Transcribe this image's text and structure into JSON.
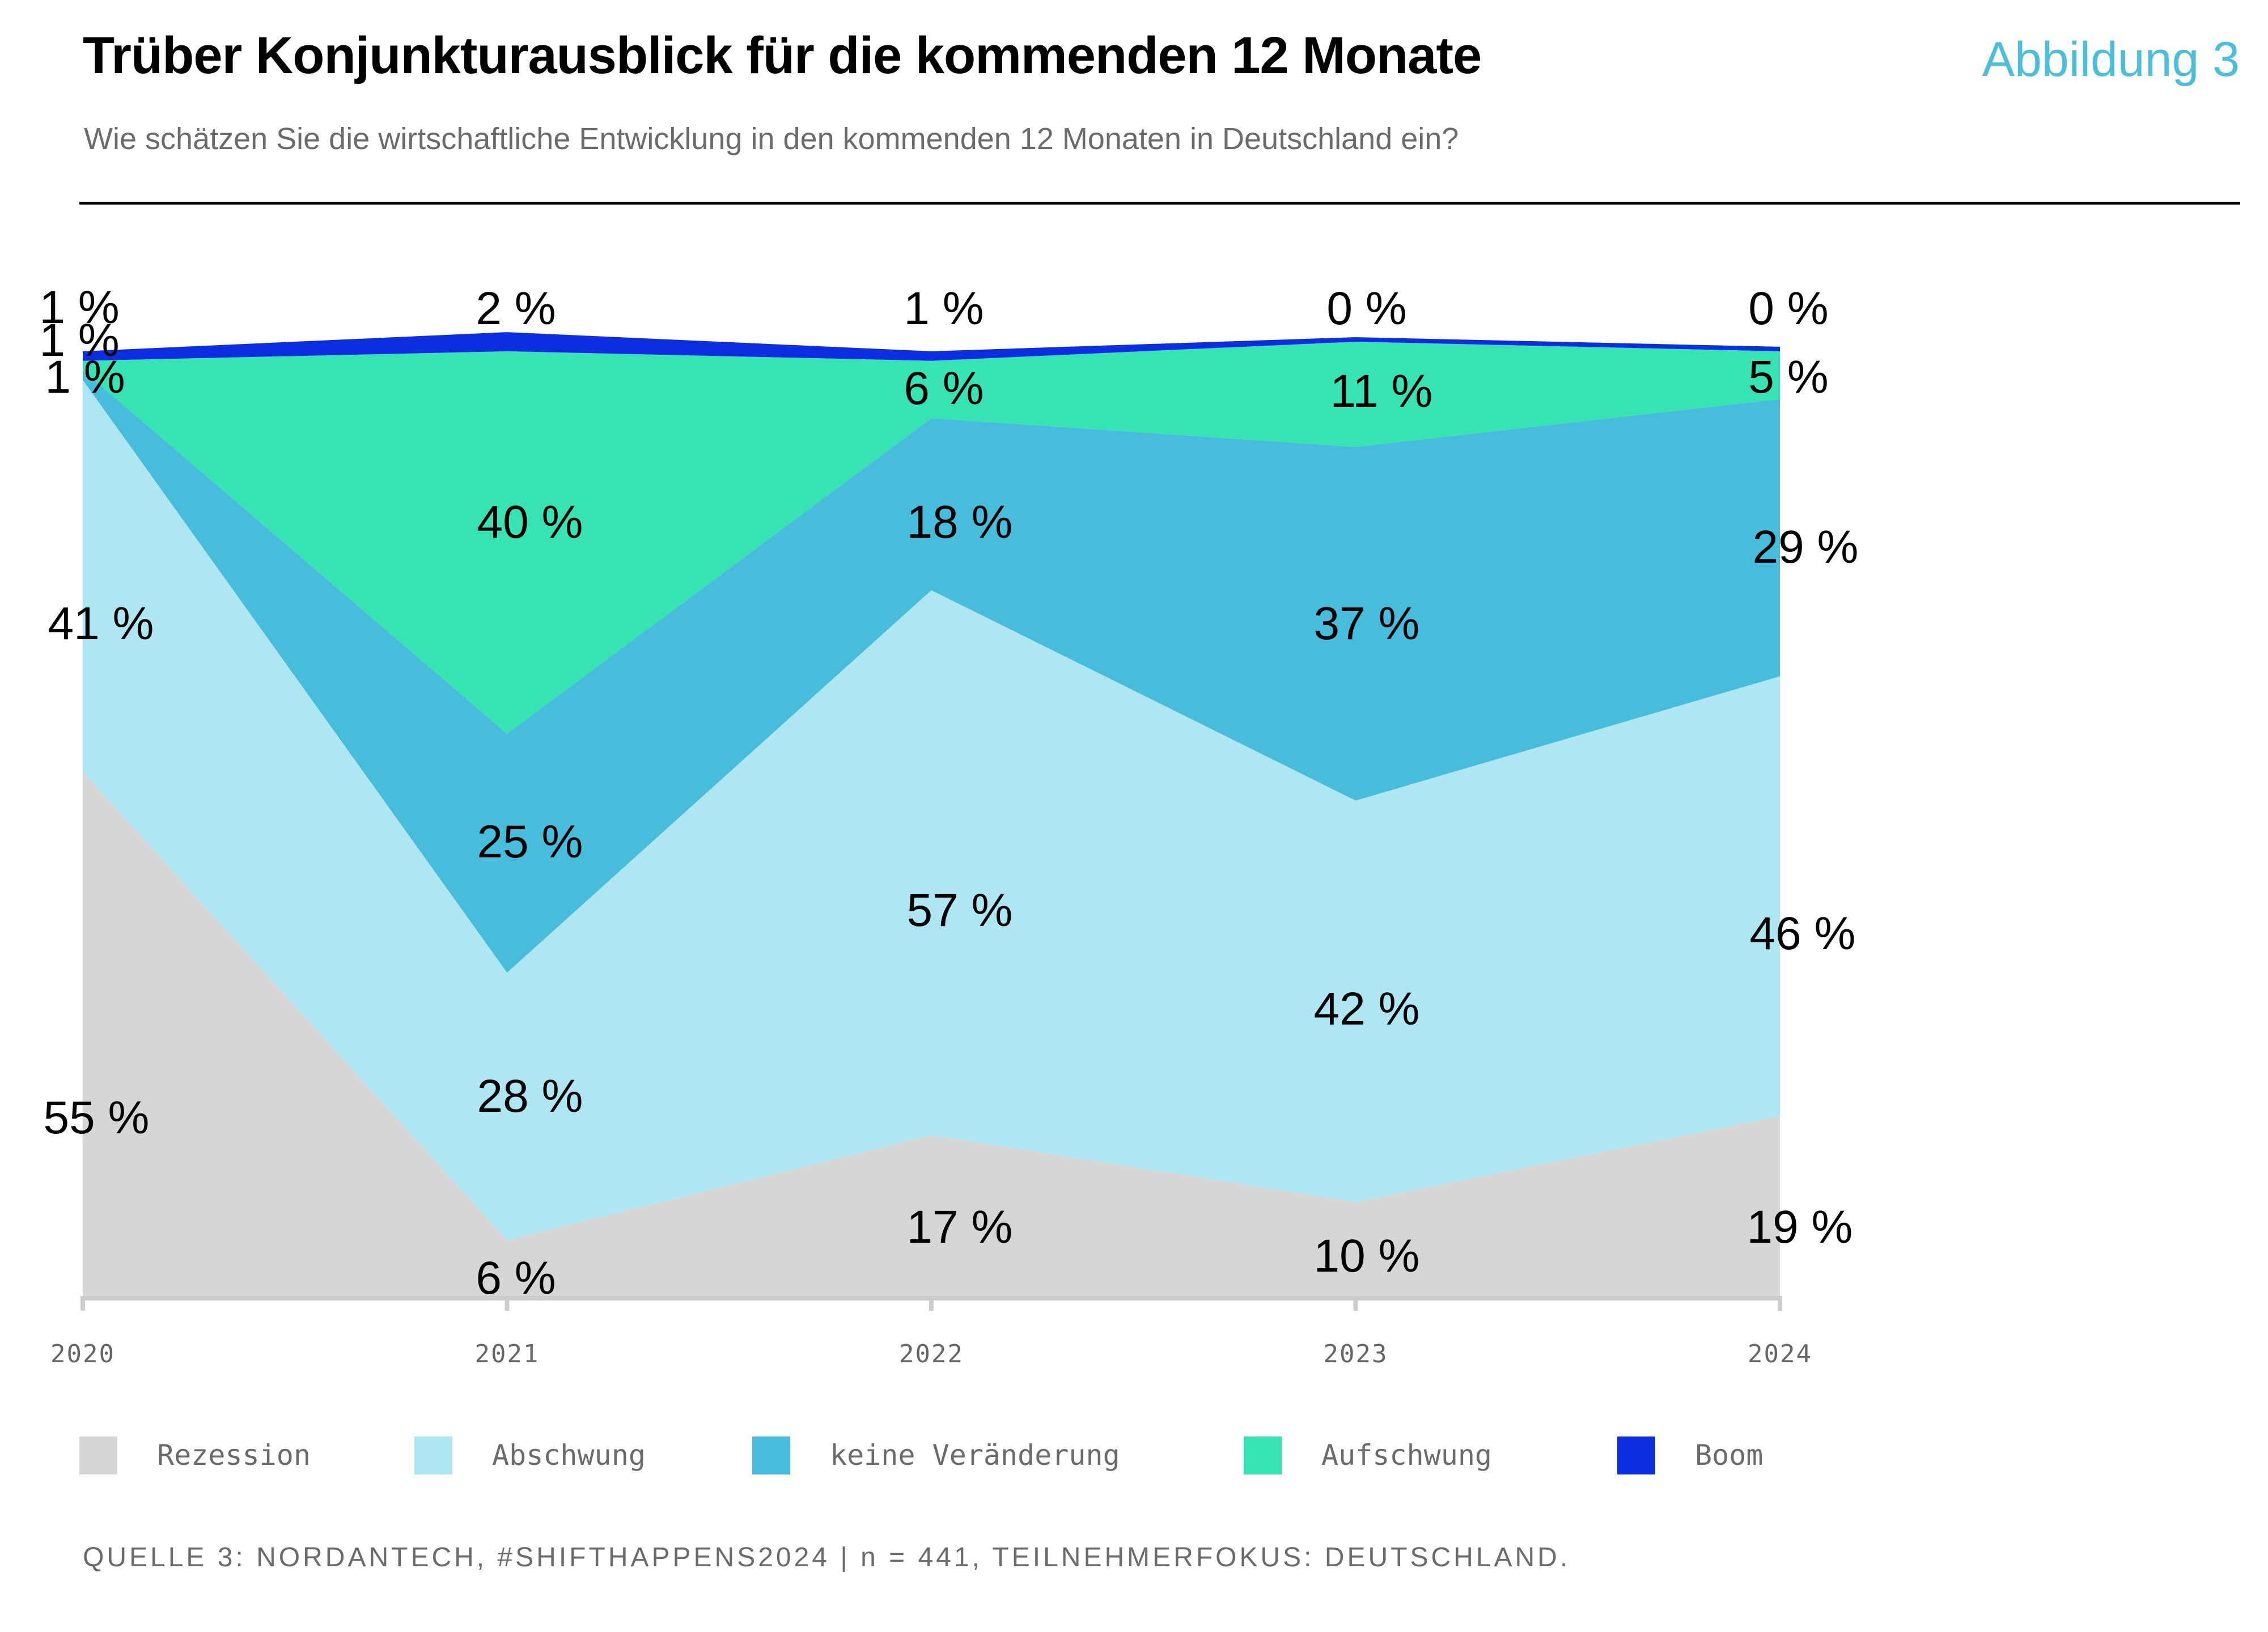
{
  "header": {
    "title": "Trüber Konjunkturausblick für die kommenden 12 Monate",
    "figure_label": "Abbildung 3",
    "subtitle": "Wie schätzen Sie die wirtschaftliche Entwicklung in den kommenden 12 Monaten in Deutschland ein?"
  },
  "colors": {
    "accent": "#4bbedc",
    "rezession": "#d6d6d6",
    "abschwung": "#aee7f1",
    "keine_veraenderung": "#47bcdb",
    "aufschwung": "#37e2b3",
    "boom": "#0c2ee0",
    "axis": "#cccccc"
  },
  "chart_data": {
    "type": "area",
    "stacked": true,
    "title": "Trüber Konjunkturausblick für die kommenden 12 Monate",
    "subtitle": "Wie schätzen Sie die wirtschaftliche Entwicklung in den kommenden 12 Monaten in Deutschland ein?",
    "xlabel": "",
    "ylabel": "",
    "categories": [
      "2020",
      "2021",
      "2022",
      "2023",
      "2024"
    ],
    "ylim": [
      0,
      101
    ],
    "grid": false,
    "legend_position": "bottom",
    "value_suffix": " %",
    "series": [
      {
        "name": "Rezession",
        "color": "#d6d6d6",
        "values": [
          55,
          6,
          17,
          10,
          19
        ]
      },
      {
        "name": "Abschwung",
        "color": "#aee7f1",
        "values": [
          41,
          28,
          57,
          42,
          46
        ]
      },
      {
        "name": "keine Veränderung",
        "color": "#47bcdb",
        "values": [
          1,
          25,
          18,
          37,
          29
        ]
      },
      {
        "name": "Aufschwung",
        "color": "#37e2b3",
        "values": [
          1,
          40,
          6,
          11,
          5
        ]
      },
      {
        "name": "Boom",
        "color": "#0c2ee0",
        "values": [
          1,
          2,
          1,
          0,
          0
        ]
      }
    ]
  },
  "legend": {
    "items": [
      {
        "label": "Rezession",
        "color": "#d6d6d6"
      },
      {
        "label": "Abschwung",
        "color": "#aee7f1"
      },
      {
        "label": "keine Veränderung",
        "color": "#47bcdb"
      },
      {
        "label": "Aufschwung",
        "color": "#37e2b3"
      },
      {
        "label": "Boom",
        "color": "#0c2ee0"
      }
    ]
  },
  "footer": {
    "source": "QUELLE 3: NORDANTECH, #SHIFTHAPPENS2024 | n = 441, TEILNEHMERFOKUS: DEUTSCHLAND."
  }
}
